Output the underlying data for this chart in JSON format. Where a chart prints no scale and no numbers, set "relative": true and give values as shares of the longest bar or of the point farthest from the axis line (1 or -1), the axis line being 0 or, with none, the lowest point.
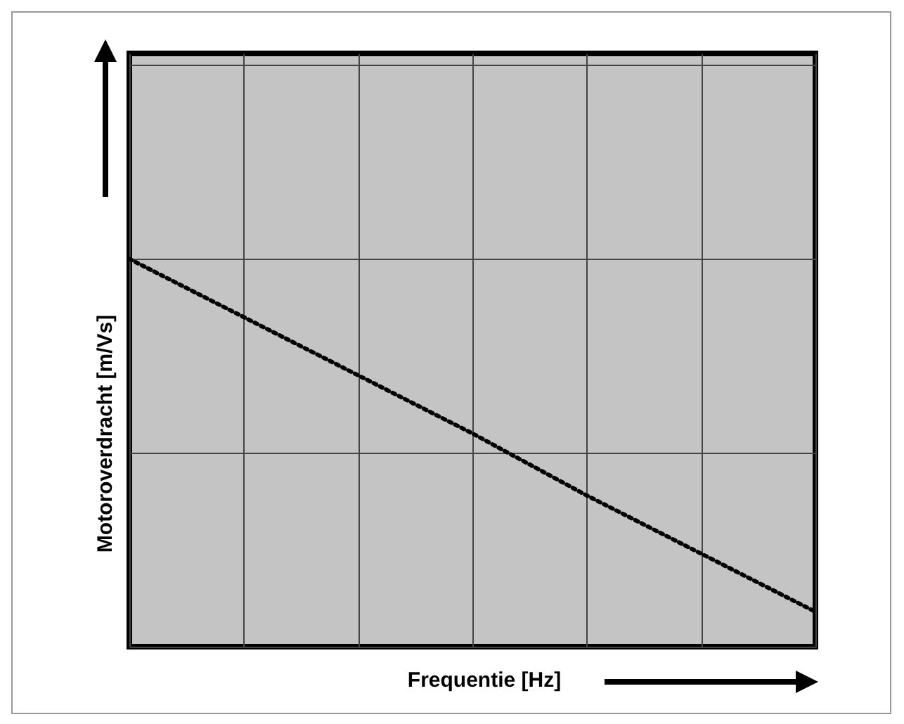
{
  "chart_data": {
    "type": "line",
    "relative": true,
    "xlabel": "Frequentie [Hz]",
    "ylabel": "Motoroverdracht [m/Vs]",
    "categories": [
      null,
      null,
      null,
      null,
      null,
      null,
      null
    ],
    "series": [
      {
        "color": "#000000",
        "values": [
          1,
          0.85,
          0.7,
          0.55,
          0.39,
          0.24,
          0.09
        ]
      }
    ],
    "grid": true,
    "legend": false,
    "marker": "none",
    "line_style": "dotted",
    "tick_labels": false
  }
}
